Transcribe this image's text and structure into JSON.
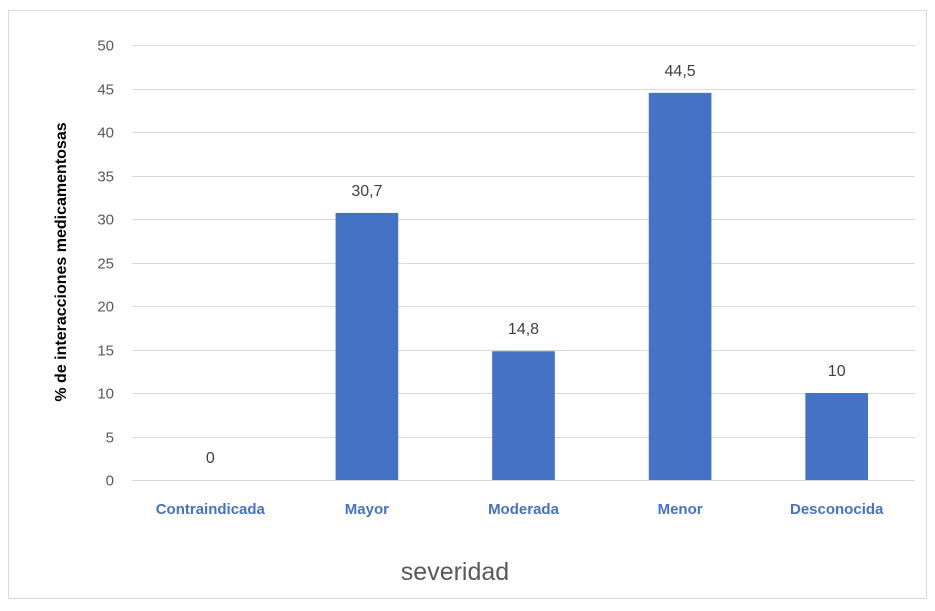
{
  "chart_data": {
    "type": "bar",
    "title": "",
    "xlabel": "severidad",
    "ylabel": "% de interacciones medicamentosas",
    "categories": [
      "Contraindicada",
      "Mayor",
      "Moderada",
      "Menor",
      "Desconocida"
    ],
    "values": [
      0,
      30.7,
      14.8,
      44.5,
      10
    ],
    "data_labels": [
      "0",
      "30,7",
      "14,8",
      "44,5",
      "10"
    ],
    "ylim": [
      0,
      50
    ],
    "yticks": [
      "0",
      "5",
      "10",
      "15",
      "20",
      "25",
      "30",
      "35",
      "40",
      "45",
      "50"
    ],
    "grid": true,
    "legend": "none",
    "colors": {
      "bar": "#4472c4",
      "category_label": "#4472c4",
      "grid": "#d9d9d9"
    }
  }
}
